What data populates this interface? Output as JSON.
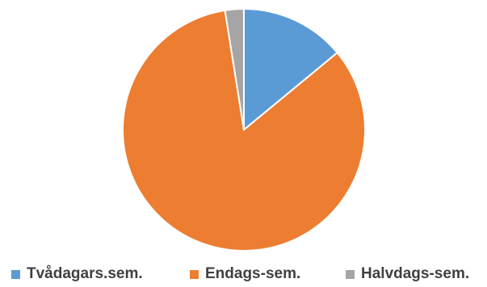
{
  "chart_data": {
    "type": "pie",
    "categories": [
      "Tvådagars.sem.",
      "Endags-sem.",
      "Halvdags-sem."
    ],
    "values": [
      14,
      83.5,
      2.5
    ],
    "colors": [
      "#5b9bd5",
      "#ed7d31",
      "#a5a5a5"
    ],
    "title": "",
    "legend_position": "bottom",
    "slice_border_color": "#ffffff"
  }
}
